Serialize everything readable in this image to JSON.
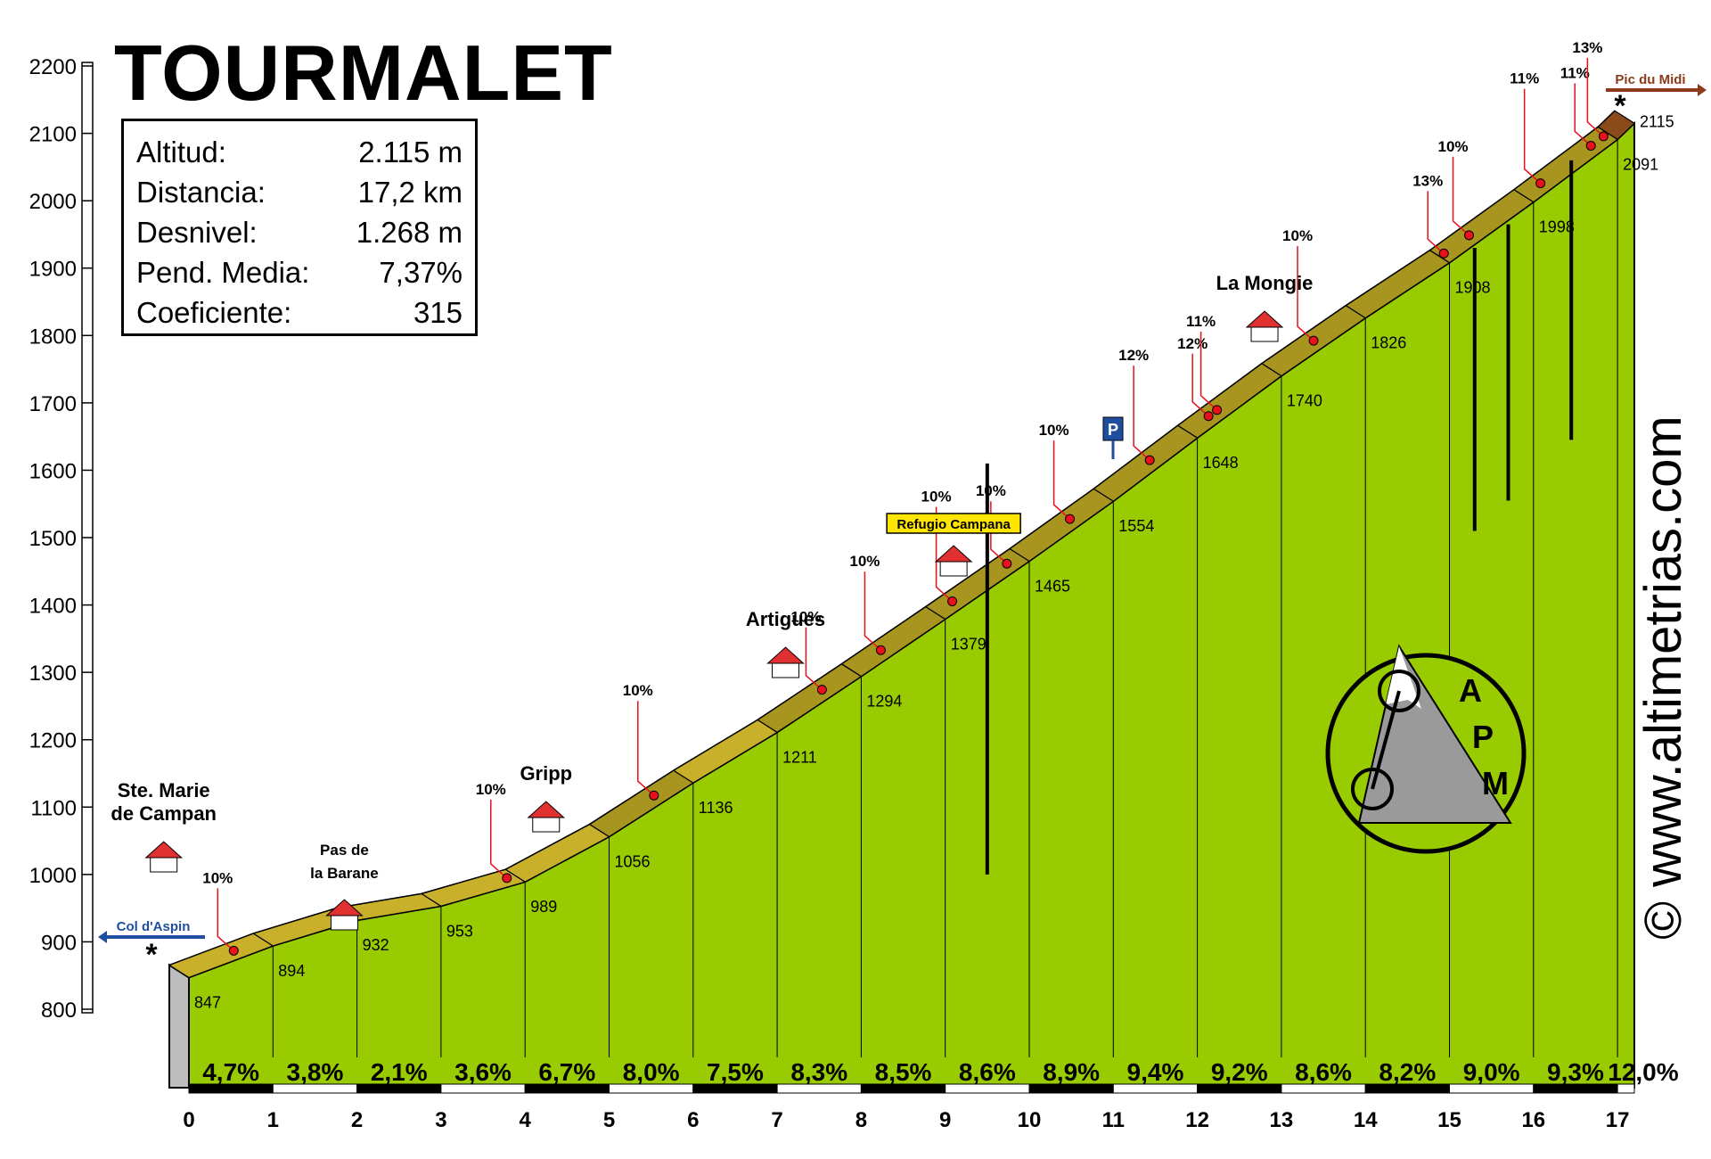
{
  "title": "TOURMALET",
  "stats": [
    {
      "label": "Altitud:",
      "value": "2.115 m"
    },
    {
      "label": "Distancia:",
      "value": "17,2 km"
    },
    {
      "label": "Desnivel:",
      "value": "1.268 m"
    },
    {
      "label": "Pend. Media:",
      "value": "7,37%"
    },
    {
      "label": "Coeficiente:",
      "value": "315"
    }
  ],
  "website": "© www.altimetrias.com",
  "logo_text": [
    "A",
    "P",
    "M"
  ],
  "colors": {
    "fill": "#99cc00",
    "road": "#c9b02a",
    "road_steep": "#8a4a1a",
    "marker": "#e8101a"
  },
  "chart_data": {
    "type": "area",
    "y_ticks": [
      800,
      900,
      1000,
      1100,
      1200,
      1300,
      1400,
      1500,
      1600,
      1700,
      1800,
      1900,
      2000,
      2100,
      2200
    ],
    "x_ticks": [
      "0",
      "1",
      "2",
      "3",
      "4",
      "5",
      "6",
      "7",
      "8",
      "9",
      "10",
      "11",
      "12",
      "13",
      "14",
      "15",
      "16",
      "17"
    ],
    "ylim": [
      800,
      2200
    ],
    "xlim": [
      0,
      17.2
    ],
    "profile": [
      {
        "x": 0,
        "y": 847
      },
      {
        "x": 1,
        "y": 894
      },
      {
        "x": 2,
        "y": 932
      },
      {
        "x": 3,
        "y": 953
      },
      {
        "x": 4,
        "y": 989
      },
      {
        "x": 5,
        "y": 1056
      },
      {
        "x": 6,
        "y": 1136
      },
      {
        "x": 7,
        "y": 1211
      },
      {
        "x": 8,
        "y": 1294
      },
      {
        "x": 9,
        "y": 1379
      },
      {
        "x": 10,
        "y": 1465
      },
      {
        "x": 11,
        "y": 1554
      },
      {
        "x": 12,
        "y": 1648
      },
      {
        "x": 13,
        "y": 1740
      },
      {
        "x": 14,
        "y": 1826
      },
      {
        "x": 15,
        "y": 1908
      },
      {
        "x": 16,
        "y": 1998
      },
      {
        "x": 17,
        "y": 2091
      },
      {
        "x": 17.2,
        "y": 2115
      }
    ],
    "altitude_labels": [
      "847",
      "894",
      "932",
      "953",
      "989",
      "1056",
      "1136",
      "1211",
      "1294",
      "1379",
      "1465",
      "1554",
      "1648",
      "1740",
      "1826",
      "1908",
      "1998",
      "2091",
      "2115"
    ],
    "gradients": [
      "4,7%",
      "3,8%",
      "2,1%",
      "3,6%",
      "6,7%",
      "8,0%",
      "7,5%",
      "8,3%",
      "8,5%",
      "8,6%",
      "8,9%",
      "9,4%",
      "9,2%",
      "8,6%",
      "8,2%",
      "9,0%",
      "9,3%",
      "12,0%"
    ],
    "steep_points": [
      {
        "x": 0.65,
        "label": "10%"
      },
      {
        "x": 3.9,
        "label": "10%"
      },
      {
        "x": 5.65,
        "label": "10%"
      },
      {
        "x": 7.65,
        "label": "10%"
      },
      {
        "x": 8.35,
        "label": "10%"
      },
      {
        "x": 9.2,
        "label": "10%"
      },
      {
        "x": 9.85,
        "label": "10%"
      },
      {
        "x": 10.6,
        "label": "10%"
      },
      {
        "x": 11.55,
        "label": "12%"
      },
      {
        "x": 12.25,
        "label": "12%"
      },
      {
        "x": 12.35,
        "label": "11%"
      },
      {
        "x": 13.5,
        "label": "10%"
      },
      {
        "x": 15.05,
        "label": "13%"
      },
      {
        "x": 15.35,
        "label": "10%"
      },
      {
        "x": 16.2,
        "label": "11%"
      },
      {
        "x": 16.8,
        "label": "11%"
      },
      {
        "x": 16.95,
        "label": "13%"
      }
    ],
    "places": [
      {
        "name": "Ste. Marie\nde Campan",
        "x": -0.3
      },
      {
        "name": "Pas de\nla Barane",
        "x": 1.85
      },
      {
        "name": "Gripp",
        "x": 4.25
      },
      {
        "name": "Artigues",
        "x": 7.1
      },
      {
        "name": "Refugio Campana",
        "x": 9.1
      },
      {
        "name": "La Mongie",
        "x": 12.8
      }
    ],
    "signs": [
      {
        "text": "Col d'Aspin",
        "direction": "left"
      },
      {
        "text": "Pic du Midi",
        "direction": "right"
      }
    ],
    "parking": "P"
  }
}
